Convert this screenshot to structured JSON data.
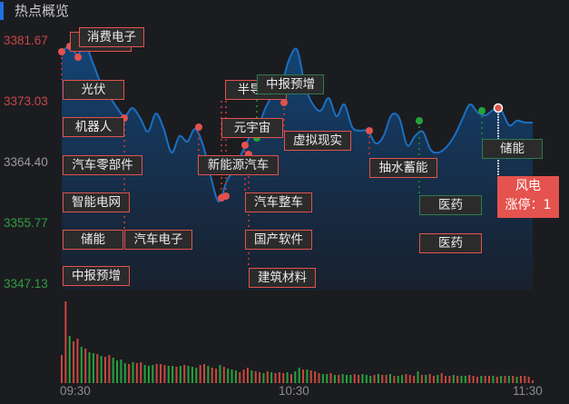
{
  "header": {
    "title": "热点概览"
  },
  "colors": {
    "up": "#e2524d",
    "down": "#2ea043",
    "flat": "#9a9a9a",
    "line": "#1b6fc0",
    "accent": "#1f6fe0"
  },
  "chart_data": {
    "type": "area",
    "y_ticks": [
      "3381.67",
      "3373.03",
      "3364.40",
      "3355.77",
      "3347.13"
    ],
    "ylim": [
      3347.13,
      3381.67
    ],
    "x_ticks": [
      "09:30",
      "10:30",
      "11:30"
    ],
    "price_interval_minutes": 2,
    "price": [
      3380.12,
      3380.9,
      3379.74,
      3381.03,
      3378.45,
      3375.61,
      3373.94,
      3372.26,
      3370.97,
      3372.13,
      3370.71,
      3368.78,
      3371.36,
      3369.17,
      3365.82,
      3368.14,
      3367.37,
      3369.17,
      3366.85,
      3362.34,
      3358.86,
      3361.69,
      3363.63,
      3365.82,
      3368.14,
      3369.43,
      3372.26,
      3374.19,
      3375.48,
      3379.1,
      3380.38,
      3375.23,
      3372.65,
      3371.75,
      3373.55,
      3370.97,
      3372.65,
      3369.43,
      3368.91,
      3368.91,
      3367.11,
      3368.14,
      3371.1,
      3370.71,
      3366.85,
      3368.14,
      3368.78,
      3366.2,
      3365.82,
      3366.59,
      3368.14,
      3370.46,
      3372.65,
      3371.49,
      3371.1,
      3371.87,
      3371.75,
      3369.68,
      3370.33,
      3370.07,
      3370.07
    ],
    "volume": [
      31,
      90,
      52,
      46,
      49,
      40,
      38,
      34,
      33,
      32,
      30,
      29,
      31,
      28,
      25,
      26,
      22,
      21,
      23,
      22,
      23,
      20,
      19,
      20,
      21,
      21,
      20,
      19,
      19,
      18,
      19,
      20,
      19,
      18,
      17,
      20,
      21,
      19,
      17,
      16,
      20,
      18,
      16,
      15,
      14,
      12,
      15,
      17,
      14,
      13,
      12,
      11,
      13,
      12,
      11,
      12,
      11,
      12,
      10,
      13,
      17,
      15,
      15,
      14,
      13,
      11,
      10,
      10,
      11,
      9,
      9,
      10,
      9,
      9,
      10,
      9,
      10,
      9,
      8,
      9,
      10,
      9,
      9,
      10,
      8,
      8,
      9,
      10,
      9,
      8,
      13,
      9,
      9,
      10,
      8,
      9,
      11,
      8,
      8,
      9,
      8,
      8,
      8,
      9,
      8,
      7,
      8,
      8,
      8,
      8,
      7,
      8,
      8,
      8,
      8,
      7,
      8,
      8,
      7,
      3
    ],
    "volume_dir": "rrgrrgrggrgrrggggrgrrgggrrrggrgrgggrrgrrgrgggrrrgrrgrgrrrgrggrgrrrggrgrgggrrgggrgrrgrggrrrgrgrrgrrrgrggrrrgrrgrgrgrgrrr"
  },
  "labels": [
    {
      "text": "消费电子",
      "tone": "up"
    },
    {
      "text": "光伏",
      "tone": "up"
    },
    {
      "text": "机器人",
      "tone": "up"
    },
    {
      "text": "汽车零部件",
      "tone": "up"
    },
    {
      "text": "智能电网",
      "tone": "up"
    },
    {
      "text": "储能",
      "tone": "up"
    },
    {
      "text": "汽车电子",
      "tone": "up"
    },
    {
      "text": "中报预增",
      "tone": "up"
    },
    {
      "text": "半导体",
      "tone": "up"
    },
    {
      "text": "中报预增",
      "tone": "down"
    },
    {
      "text": "元宇宙",
      "tone": "up"
    },
    {
      "text": "虚拟现实",
      "tone": "up"
    },
    {
      "text": "新能源汽车",
      "tone": "up"
    },
    {
      "text": "汽车整车",
      "tone": "up"
    },
    {
      "text": "国产软件",
      "tone": "up"
    },
    {
      "text": "建筑材料",
      "tone": "up"
    },
    {
      "text": "抽水蓄能",
      "tone": "up"
    },
    {
      "text": "储能",
      "tone": "down"
    },
    {
      "text": "医药",
      "tone": "down"
    },
    {
      "text": "医药",
      "tone": "up"
    }
  ],
  "highlight": {
    "sector": "风电",
    "limit_up_label": "涨停：1"
  }
}
